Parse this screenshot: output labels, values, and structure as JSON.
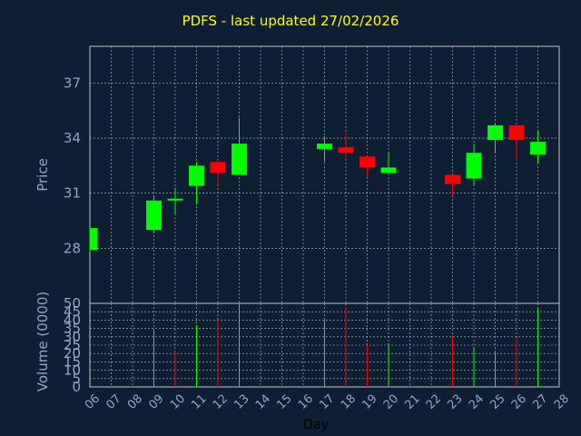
{
  "chart_data": [
    {
      "type": "candlestick",
      "title": "PDFS - last updated 27/02/2026",
      "ylabel": "Price",
      "ylim": [
        25,
        39
      ],
      "yticks": [
        28,
        31,
        34,
        37
      ],
      "grid": true,
      "colors": {
        "up": "#00ff00",
        "down": "#ff0000",
        "background": "#0f1f33",
        "plot_area": "#0f1f33",
        "grid": "#c0c0c0",
        "text": "#8fa8c4",
        "title": "#ffff00"
      },
      "candles": [
        {
          "day": "06",
          "open": 27.9,
          "high": 29.1,
          "low": 27.8,
          "close": 29.1
        },
        {
          "day": "09",
          "open": 29.0,
          "high": 30.8,
          "low": 28.8,
          "close": 30.6
        },
        {
          "day": "10",
          "open": 30.7,
          "high": 31.3,
          "low": 29.9,
          "close": 30.7
        },
        {
          "day": "11",
          "open": 31.4,
          "high": 32.7,
          "low": 30.4,
          "close": 32.5
        },
        {
          "day": "12",
          "open": 32.7,
          "high": 32.8,
          "low": 31.5,
          "close": 32.1
        },
        {
          "day": "13",
          "open": 32.0,
          "high": 35.1,
          "low": 32.0,
          "close": 33.7
        },
        {
          "day": "17",
          "open": 33.4,
          "high": 34.1,
          "low": 32.7,
          "close": 33.7
        },
        {
          "day": "18",
          "open": 33.5,
          "high": 34.3,
          "low": 32.9,
          "close": 33.2
        },
        {
          "day": "19",
          "open": 33.0,
          "high": 33.0,
          "low": 31.9,
          "close": 32.4
        },
        {
          "day": "20",
          "open": 32.1,
          "high": 33.2,
          "low": 32.1,
          "close": 32.4
        },
        {
          "day": "23",
          "open": 32.0,
          "high": 32.0,
          "low": 30.9,
          "close": 31.5
        },
        {
          "day": "24",
          "open": 31.8,
          "high": 33.7,
          "low": 31.4,
          "close": 33.2
        },
        {
          "day": "25",
          "open": 33.9,
          "high": 34.8,
          "low": 33.2,
          "close": 34.7
        },
        {
          "day": "26",
          "open": 34.7,
          "high": 34.7,
          "low": 32.8,
          "close": 33.9
        },
        {
          "day": "27",
          "open": 33.1,
          "high": 34.4,
          "low": 32.6,
          "close": 33.8
        }
      ]
    },
    {
      "type": "bar",
      "ylabel": "Volume (0000)",
      "xlabel": "Day",
      "ylim": [
        0,
        50
      ],
      "yticks": [
        0,
        5,
        10,
        15,
        20,
        25,
        30,
        35,
        40,
        45,
        50
      ],
      "categories": [
        "06",
        "07",
        "08",
        "09",
        "10",
        "11",
        "12",
        "13",
        "14",
        "15",
        "16",
        "17",
        "18",
        "19",
        "20",
        "21",
        "22",
        "23",
        "24",
        "25",
        "26",
        "27",
        "28"
      ],
      "bars": [
        {
          "day": "09",
          "value": 34,
          "direction": "up"
        },
        {
          "day": "10",
          "value": 21,
          "direction": "down"
        },
        {
          "day": "11",
          "value": 37,
          "direction": "up"
        },
        {
          "day": "12",
          "value": 40,
          "direction": "down"
        },
        {
          "day": "13",
          "value": 50,
          "direction": "up"
        },
        {
          "day": "17",
          "value": 40,
          "direction": "up"
        },
        {
          "day": "18",
          "value": 48,
          "direction": "down"
        },
        {
          "day": "19",
          "value": 25,
          "direction": "down"
        },
        {
          "day": "20",
          "value": 26,
          "direction": "up"
        },
        {
          "day": "23",
          "value": 30,
          "direction": "down"
        },
        {
          "day": "24",
          "value": 24,
          "direction": "up"
        },
        {
          "day": "25",
          "value": 21,
          "direction": "up"
        },
        {
          "day": "26",
          "value": 29,
          "direction": "down"
        },
        {
          "day": "27",
          "value": 47,
          "direction": "up"
        }
      ]
    }
  ]
}
